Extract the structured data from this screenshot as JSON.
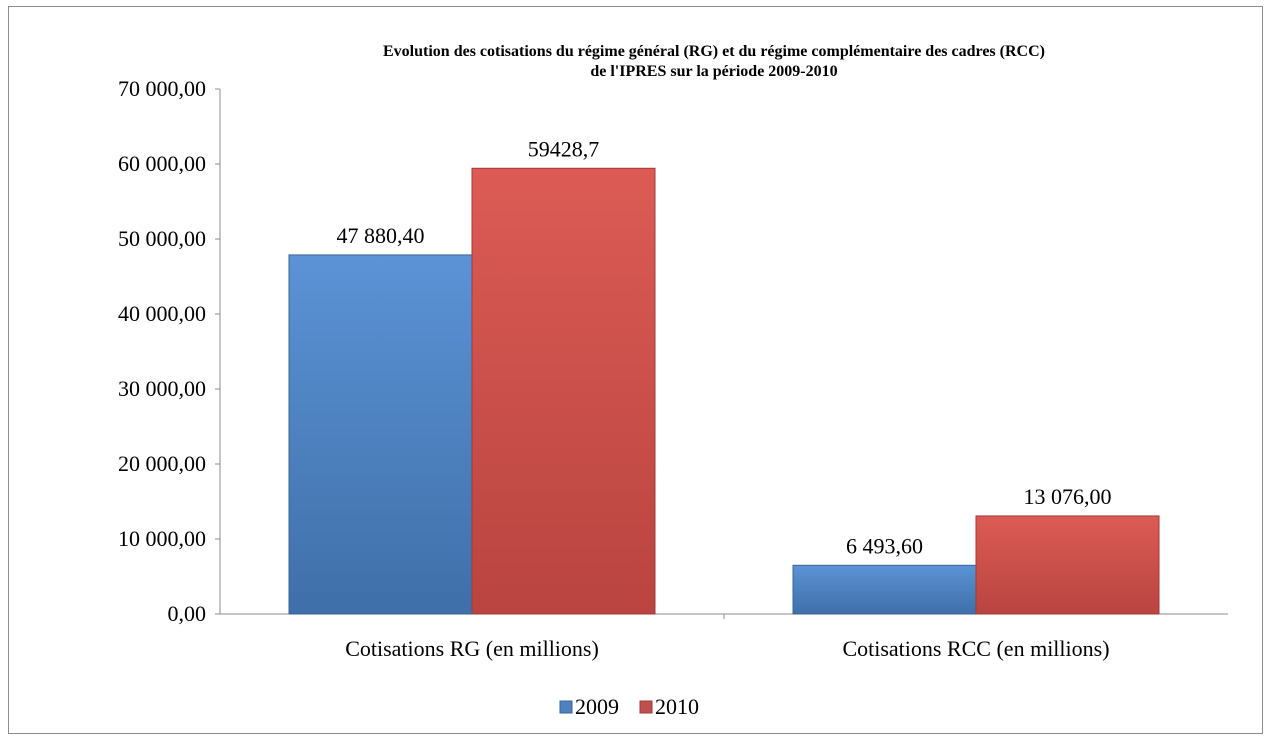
{
  "chart_data": {
    "type": "bar",
    "title": "Evolution des cotisations du régime général  (RG) et du régime complémentaire des cadres (RCC)",
    "subtitle": "de l'IPRES  sur la période 2009-2010",
    "categories": [
      "Cotisations RG (en millions)",
      "Cotisations RCC (en millions)"
    ],
    "series": [
      {
        "name": "2009",
        "values": [
          47880.4,
          6493.6
        ],
        "labels": [
          "47 880,40",
          "6 493,60"
        ],
        "color": "#4f81bd"
      },
      {
        "name": "2010",
        "values": [
          59428.7,
          13076.0
        ],
        "labels": [
          "59428,7",
          "13 076,00"
        ],
        "color": "#c0504d"
      }
    ],
    "ylim": [
      0,
      70000
    ],
    "yticks": [
      0,
      10000,
      20000,
      30000,
      40000,
      50000,
      60000,
      70000
    ],
    "ytick_labels": [
      "0,00",
      "10 000,00",
      "20 000,00",
      "30 000,00",
      "40 000,00",
      "50 000,00",
      "60 000,00",
      "70 000,00"
    ],
    "grid": false,
    "legend_position": "bottom"
  }
}
